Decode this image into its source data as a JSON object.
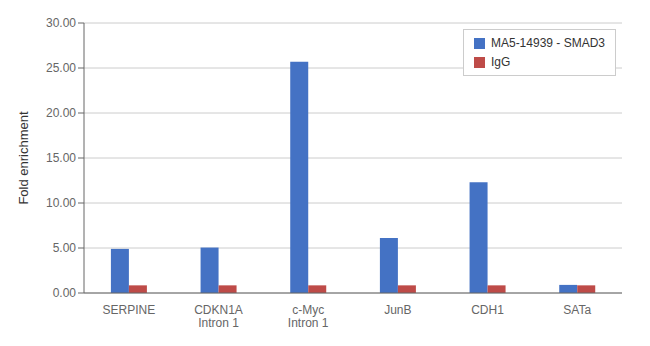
{
  "chart_data": {
    "type": "bar",
    "categories": [
      "SERPINE",
      "CDKN1A\nIntron 1",
      "c-Myc\nIntron 1",
      "JunB",
      "CDH1",
      "SATa"
    ],
    "series": [
      {
        "name": "MA5-14939 - SMAD3",
        "color": "#4472C4",
        "values": [
          4.9,
          5.05,
          25.7,
          6.1,
          12.3,
          0.9
        ]
      },
      {
        "name": "IgG",
        "color": "#BE4B48",
        "values": [
          0.85,
          0.85,
          0.85,
          0.85,
          0.85,
          0.85
        ]
      }
    ],
    "ylabel": "Fold enrichment",
    "ylim": [
      0,
      30
    ],
    "yticks": [
      {
        "value": 0,
        "label": "0.00"
      },
      {
        "value": 5,
        "label": "5.00"
      },
      {
        "value": 10,
        "label": "10.00"
      },
      {
        "value": 15,
        "label": "15.00"
      },
      {
        "value": 20,
        "label": "20.00"
      },
      {
        "value": 25,
        "label": "25.00"
      },
      {
        "value": 30,
        "label": "30.00"
      }
    ],
    "grid": true,
    "legend": "upper right"
  }
}
